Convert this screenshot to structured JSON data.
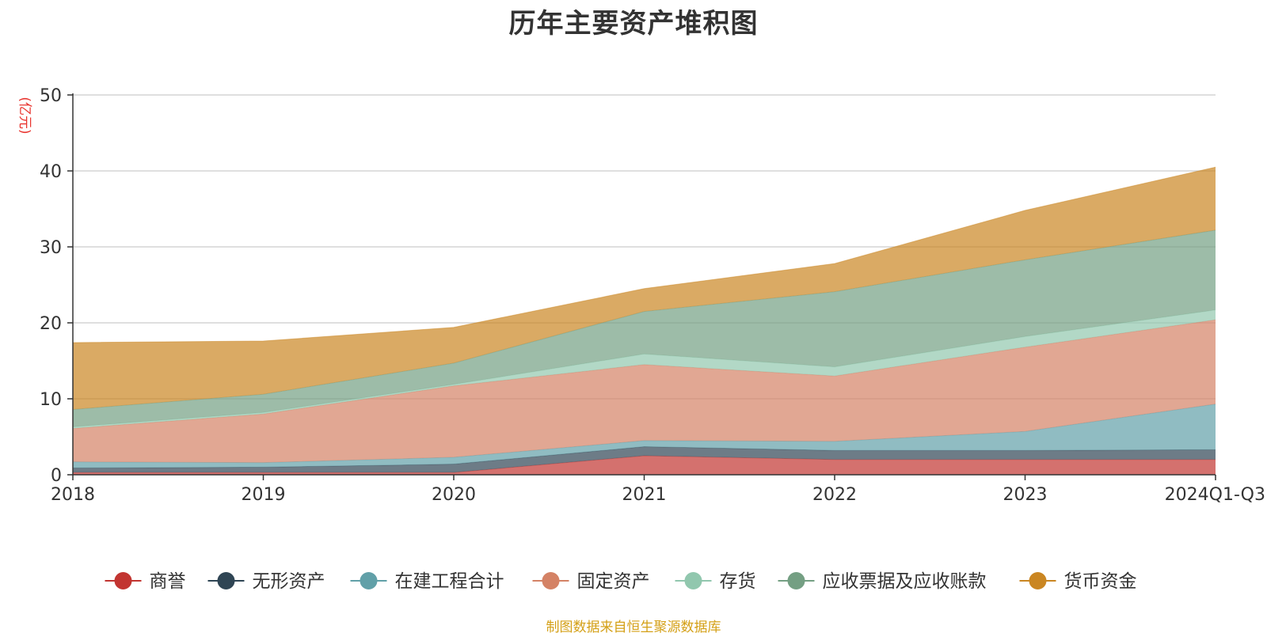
{
  "chart_title": "历年主要资产堆积图",
  "footer_source": "制图数据来自恒生聚源数据库",
  "chart_data": {
    "type": "area",
    "stacked": true,
    "title": "历年主要资产堆积图",
    "ylabel": "(亿元)",
    "ylim": [
      0,
      50
    ],
    "yticks": [
      0,
      10,
      20,
      30,
      40,
      50
    ],
    "grid": true,
    "legend_position": "bottom",
    "categories": [
      "2018",
      "2019",
      "2020",
      "2021",
      "2022",
      "2023",
      "2024Q1-Q3"
    ],
    "series": [
      {
        "name": "商誉",
        "color": "#c23531",
        "values": [
          0.3,
          0.3,
          0.3,
          2.5,
          2.0,
          2.0,
          2.0
        ]
      },
      {
        "name": "无形资产",
        "color": "#2f4554",
        "values": [
          0.6,
          0.7,
          1.1,
          1.2,
          1.2,
          1.2,
          1.3
        ]
      },
      {
        "name": "在建工程合计",
        "color": "#61a0a8",
        "values": [
          0.8,
          0.6,
          0.9,
          0.8,
          1.2,
          2.5,
          6.0
        ]
      },
      {
        "name": "固定资产",
        "color": "#d48265",
        "values": [
          4.4,
          6.4,
          9.4,
          10.0,
          8.6,
          11.1,
          11.1
        ]
      },
      {
        "name": "存货",
        "color": "#91c7ae",
        "values": [
          0.2,
          0.2,
          0.2,
          1.4,
          1.2,
          1.4,
          1.3
        ]
      },
      {
        "name": "应收票据及应收账款",
        "color": "#749f83",
        "values": [
          2.3,
          2.4,
          2.8,
          5.6,
          9.9,
          10.1,
          10.5
        ]
      },
      {
        "name": "货币资金",
        "color": "#ca8622",
        "values": [
          8.8,
          7.0,
          4.7,
          3.0,
          3.7,
          6.5,
          8.3
        ]
      }
    ]
  }
}
